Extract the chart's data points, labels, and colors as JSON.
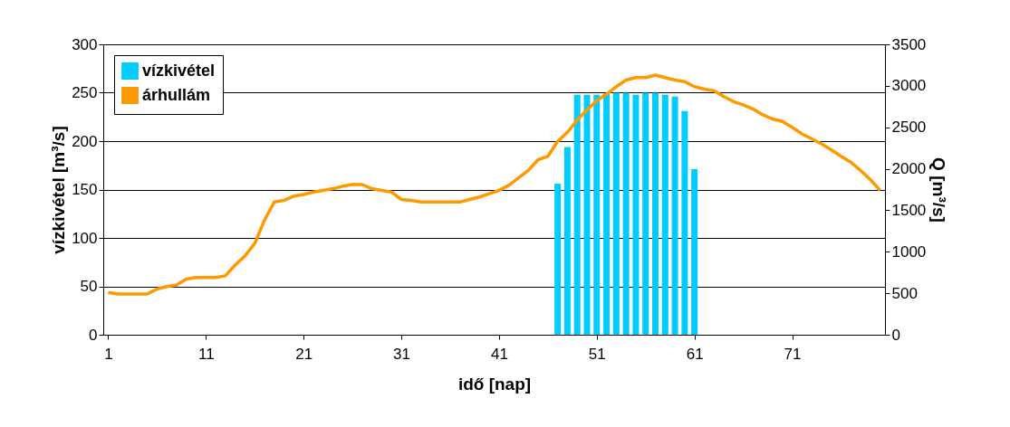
{
  "chart_data": {
    "type": "bar",
    "xlabel": "idő [nap]",
    "ylabel": "vízkivétel [m³/s]",
    "y2label": "Q [m³/s]",
    "xlim": [
      0.5,
      80.5
    ],
    "xticks": [
      1,
      11,
      21,
      31,
      41,
      51,
      61,
      71
    ],
    "ylim": [
      0,
      300
    ],
    "yticks": [
      0,
      50,
      100,
      150,
      200,
      250,
      300
    ],
    "y2lim": [
      0,
      3500
    ],
    "y2ticks": [
      0,
      500,
      1000,
      1500,
      2000,
      2500,
      3000,
      3500
    ],
    "grid": "y",
    "legend": "top left",
    "line_style": "solid",
    "series": [
      {
        "name": "vízkivétel",
        "color": "#00ccff",
        "x": [
          47,
          48,
          49,
          50,
          51,
          52,
          53,
          54,
          55,
          56,
          57,
          58,
          59,
          60,
          61
        ],
        "values": [
          156,
          194,
          248,
          248,
          248,
          249,
          250,
          250,
          248,
          250,
          250,
          248,
          246,
          231,
          171
        ]
      },
      {
        "name": "árhullám",
        "type": "line",
        "axis": "y2",
        "color": "#ff9900",
        "x": [
          1,
          2,
          3,
          4,
          5,
          6,
          7,
          8,
          9,
          10,
          11,
          12,
          13,
          14,
          15,
          16,
          17,
          18,
          19,
          20,
          21,
          22,
          23,
          24,
          25,
          26,
          27,
          28,
          29,
          30,
          31,
          32,
          33,
          34,
          35,
          36,
          37,
          38,
          39,
          40,
          41,
          42,
          43,
          44,
          45,
          46,
          47,
          48,
          49,
          50,
          51,
          52,
          53,
          54,
          55,
          56,
          57,
          58,
          59,
          60,
          61,
          62,
          63,
          64,
          65,
          66,
          67,
          68,
          69,
          70,
          71,
          72,
          73,
          74,
          75,
          76,
          77,
          78,
          79,
          80
        ],
        "values": [
          510,
          490,
          490,
          490,
          490,
          550,
          580,
          600,
          670,
          690,
          690,
          690,
          710,
          840,
          950,
          1100,
          1380,
          1600,
          1620,
          1670,
          1690,
          1720,
          1740,
          1760,
          1790,
          1810,
          1810,
          1760,
          1740,
          1720,
          1630,
          1620,
          1600,
          1600,
          1600,
          1600,
          1600,
          1630,
          1660,
          1700,
          1740,
          1800,
          1890,
          1980,
          2110,
          2150,
          2330,
          2440,
          2590,
          2710,
          2820,
          2900,
          2990,
          3070,
          3100,
          3100,
          3130,
          3100,
          3070,
          3050,
          2990,
          2960,
          2940,
          2870,
          2810,
          2770,
          2720,
          2650,
          2600,
          2570,
          2500,
          2420,
          2360,
          2300,
          2230,
          2150,
          2080,
          1980,
          1870,
          1740
        ]
      }
    ]
  }
}
